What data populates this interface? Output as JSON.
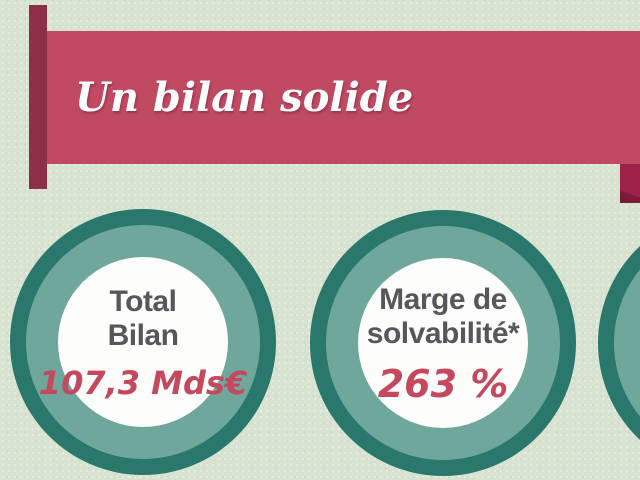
{
  "banner": {
    "title": "Un bilan solide"
  },
  "stats": [
    {
      "line1": "Total",
      "line2": "Bilan",
      "value": "107,3 Mds€"
    },
    {
      "line1": "Marge de",
      "line2": "solvabilité*",
      "value": "263 %"
    },
    {
      "line1": "",
      "line2": "",
      "value": ""
    }
  ],
  "colors": {
    "bg": "#d8e2d0",
    "banner": "#c14a63",
    "banner_text": "#ffffff",
    "ribbon_pole": "#8d2f46",
    "fold": "#9e2147",
    "fold_dark": "#7a1c39",
    "ring_outer": "#2a786c",
    "ring_inner": "#6fa79d",
    "disc": "#fdfdfc",
    "label": "#57565a",
    "value": "#c5495e"
  }
}
